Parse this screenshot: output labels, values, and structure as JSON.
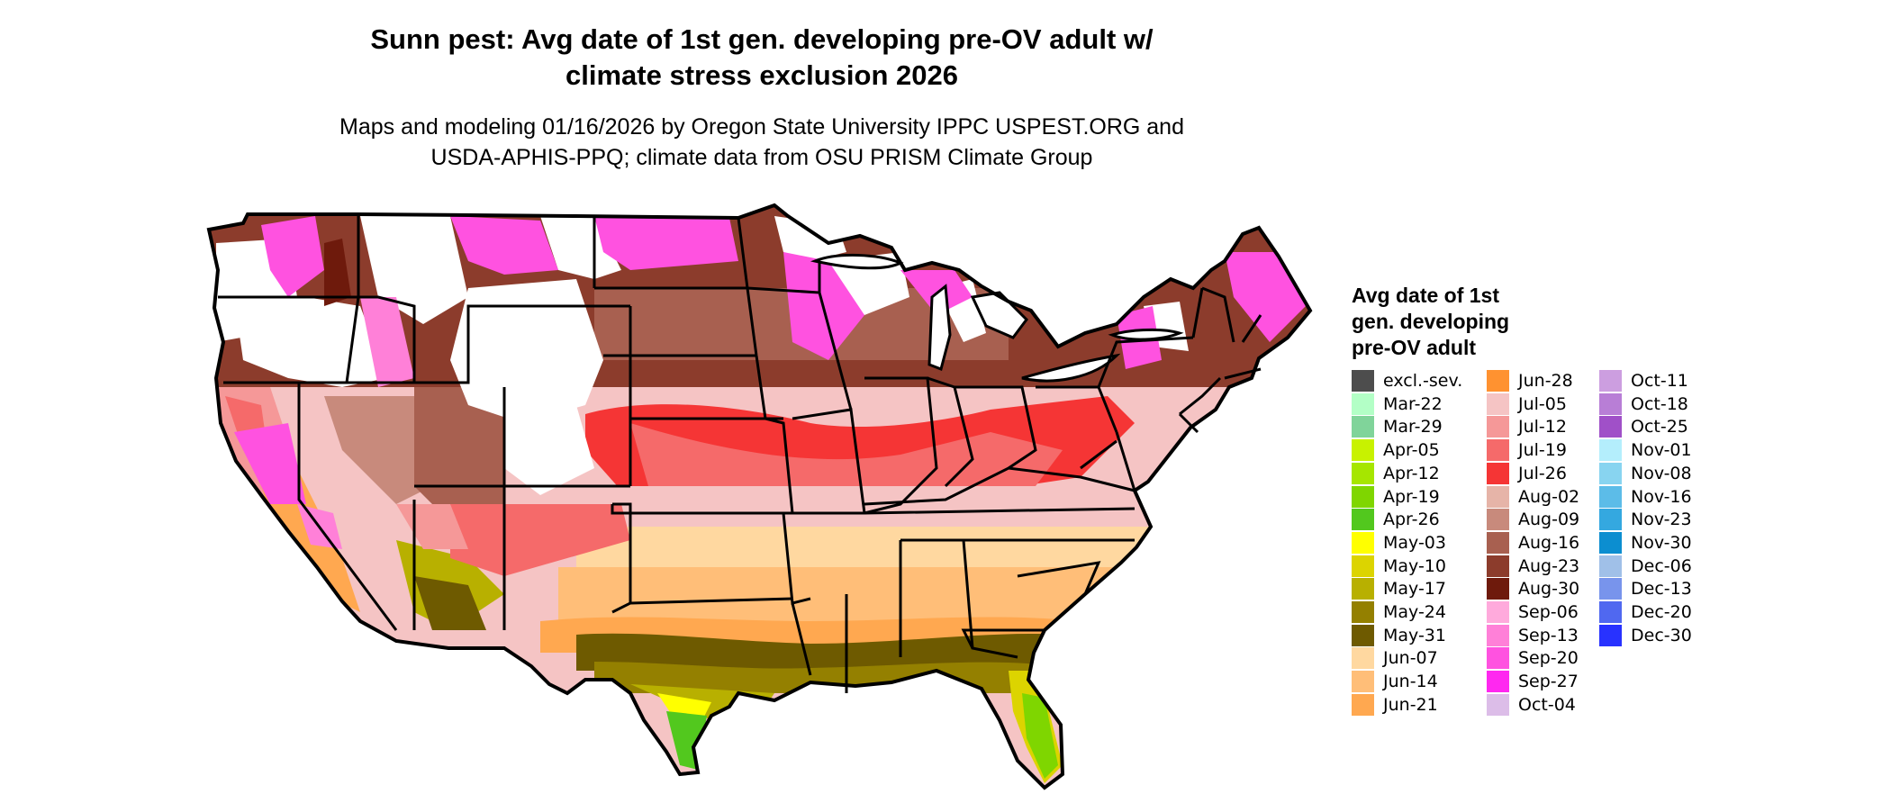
{
  "title": [
    "Sunn pest: Avg date of 1st gen. developing pre-OV adult w/",
    "climate stress exclusion 2026"
  ],
  "subtitle": [
    "Maps and modeling 01/16/2026 by Oregon State University IPPC USPEST.ORG and",
    "USDA-APHIS-PPQ; climate data from OSU PRISM Climate Group"
  ],
  "legend": {
    "title": [
      "Avg date of 1st",
      "gen. developing",
      "pre-OV adult"
    ],
    "columns": [
      [
        {
          "label": "excl.-sev.",
          "color": "#4d4d4d"
        },
        {
          "label": "Mar-22",
          "color": "#b3ffc6"
        },
        {
          "label": "Mar-29",
          "color": "#80d49a"
        },
        {
          "label": "Apr-05",
          "color": "#c8f200"
        },
        {
          "label": "Apr-12",
          "color": "#a6e600"
        },
        {
          "label": "Apr-19",
          "color": "#7fd600"
        },
        {
          "label": "Apr-26",
          "color": "#52c81e"
        },
        {
          "label": "May-03",
          "color": "#ffff00"
        },
        {
          "label": "May-10",
          "color": "#dcd400"
        },
        {
          "label": "May-17",
          "color": "#b8b000"
        },
        {
          "label": "May-24",
          "color": "#948000"
        },
        {
          "label": "May-31",
          "color": "#6e5a00"
        },
        {
          "label": "Jun-07",
          "color": "#ffd8a0"
        },
        {
          "label": "Jun-14",
          "color": "#ffbe78"
        },
        {
          "label": "Jun-21",
          "color": "#ffa850"
        }
      ],
      [
        {
          "label": "Jun-28",
          "color": "#ff9230"
        },
        {
          "label": "Jul-05",
          "color": "#f5c4c4"
        },
        {
          "label": "Jul-12",
          "color": "#f59898"
        },
        {
          "label": "Jul-19",
          "color": "#f56a6a"
        },
        {
          "label": "Jul-26",
          "color": "#f53535"
        },
        {
          "label": "Aug-02",
          "color": "#e6b4a8"
        },
        {
          "label": "Aug-09",
          "color": "#c88a7c"
        },
        {
          "label": "Aug-16",
          "color": "#a86050"
        },
        {
          "label": "Aug-23",
          "color": "#8c3c2c"
        },
        {
          "label": "Aug-30",
          "color": "#6e1a0c"
        },
        {
          "label": "Sep-06",
          "color": "#ffaadc"
        },
        {
          "label": "Sep-13",
          "color": "#ff80d8"
        },
        {
          "label": "Sep-20",
          "color": "#ff52e0"
        },
        {
          "label": "Sep-27",
          "color": "#ff28f0"
        },
        {
          "label": "Oct-04",
          "color": "#dcbde8"
        }
      ],
      [
        {
          "label": "Oct-11",
          "color": "#cc9ee0"
        },
        {
          "label": "Oct-18",
          "color": "#b87ed6"
        },
        {
          "label": "Oct-25",
          "color": "#a050c8"
        },
        {
          "label": "Nov-01",
          "color": "#b4eefc"
        },
        {
          "label": "Nov-08",
          "color": "#88d4f0"
        },
        {
          "label": "Nov-16",
          "color": "#5cbce8"
        },
        {
          "label": "Nov-23",
          "color": "#34a8e0"
        },
        {
          "label": "Nov-30",
          "color": "#0c8ed0"
        },
        {
          "label": "Dec-06",
          "color": "#a0c0e8"
        },
        {
          "label": "Dec-13",
          "color": "#7894ec"
        },
        {
          "label": "Dec-20",
          "color": "#5068f0"
        },
        {
          "label": "Dec-30",
          "color": "#2832ff"
        }
      ]
    ]
  }
}
